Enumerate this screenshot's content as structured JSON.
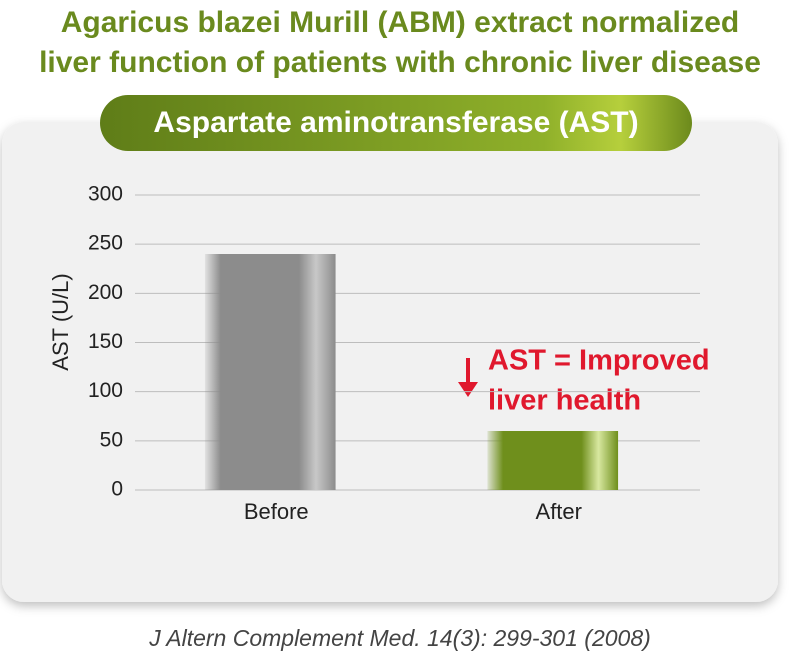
{
  "chart_data": {
    "type": "bar",
    "title": [
      "Agaricus blazei Murill (ABM) extract normalized",
      "liver function of patients with chronic liver disease"
    ],
    "subtitle": "Aspartate aminotransferase (AST)",
    "y_label": "AST (U/L)",
    "categories": [
      "Before",
      "After"
    ],
    "values": [
      240,
      60
    ],
    "colors": [
      "#8c8c8c",
      "#6f8f1c"
    ],
    "ylim": [
      0,
      300
    ],
    "yticks": [
      0,
      50,
      100,
      150,
      200,
      250,
      300
    ],
    "grid": true,
    "annotation": [
      "AST = Improved",
      "liver health"
    ],
    "source": "J Altern Complement Med. 14(3): 299-301 (2008)"
  }
}
